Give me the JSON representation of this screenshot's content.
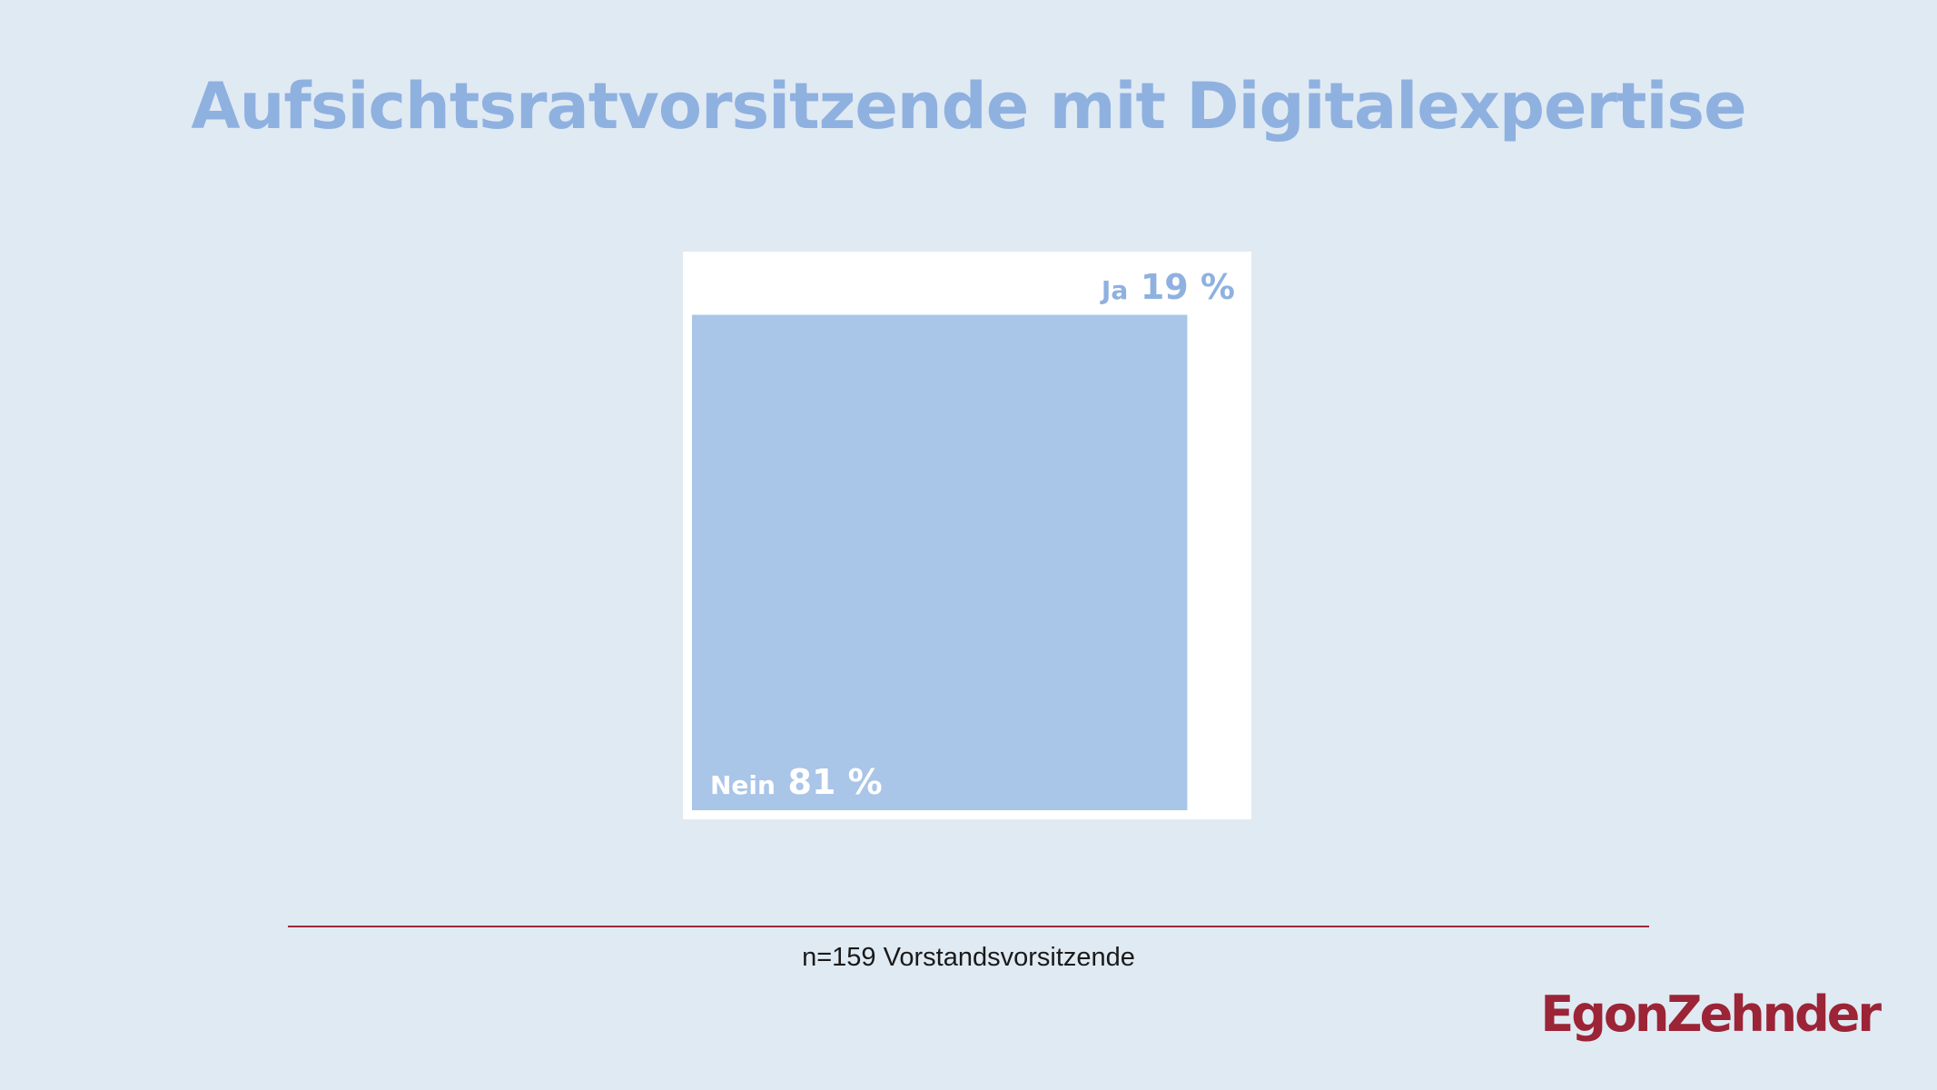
{
  "title": "Aufsichtsratvorsitzende mit Digitalexpertise",
  "footnote": "n=159 Vorstandsvorsitzende",
  "logo_text": "EgonZehnder",
  "colors": {
    "background": "#e0eaf3",
    "frame": "#ffffff",
    "accent": "#a9c5e8",
    "title": "#8fb1e0",
    "brand": "#9b2436"
  },
  "chart_data": {
    "type": "area",
    "title": "Aufsichtsratvorsitzende mit Digitalexpertise",
    "segments": [
      {
        "label": "Nein",
        "value": 81,
        "value_text": "81 %"
      },
      {
        "label": "Ja",
        "value": 19,
        "value_text": "19 %"
      }
    ],
    "unit": "%",
    "total": 100
  }
}
